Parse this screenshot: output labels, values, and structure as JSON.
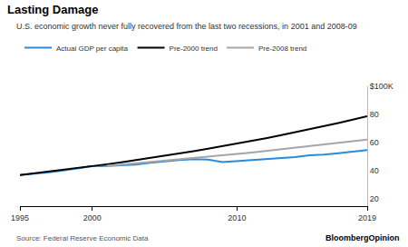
{
  "chart_data": {
    "type": "line",
    "title": "Lasting Damage",
    "subtitle": "U.S. economic growth never fully recovered from the last two recessions, in 2001 and 2008-09",
    "annotations": [
      "Source: Federal Reserve Economic Data",
      "BloombergOpinion"
    ],
    "x": [
      1995,
      1996,
      1997,
      1998,
      1999,
      2000,
      2001,
      2002,
      2003,
      2004,
      2005,
      2006,
      2007,
      2008,
      2009,
      2010,
      2011,
      2012,
      2013,
      2014,
      2015,
      2016,
      2017,
      2018,
      2019
    ],
    "series": [
      {
        "name": "Actual GDP per capita",
        "color": "#2a8ad8",
        "values": [
          37.0,
          37.8,
          39.0,
          40.3,
          41.9,
          43.3,
          43.5,
          43.8,
          44.5,
          45.8,
          46.8,
          47.7,
          48.3,
          48.0,
          46.3,
          47.0,
          47.5,
          48.3,
          48.9,
          49.8,
          51.0,
          51.5,
          52.5,
          53.8,
          54.8
        ]
      },
      {
        "name": "Pre-2000 trend",
        "color": "#000000",
        "values": [
          37.0,
          38.2,
          39.4,
          40.7,
          42.0,
          43.3,
          44.7,
          46.1,
          47.6,
          49.1,
          50.7,
          52.3,
          54.0,
          55.7,
          57.5,
          59.3,
          61.2,
          63.2,
          65.2,
          67.3,
          69.4,
          71.6,
          73.9,
          76.3,
          78.7
        ]
      },
      {
        "name": "Pre-2008 trend",
        "color": "#a6a6a6",
        "values": [
          null,
          null,
          null,
          null,
          null,
          null,
          43.5,
          44.4,
          45.3,
          46.2,
          47.1,
          48.0,
          49.0,
          50.0,
          51.0,
          52.0,
          53.0,
          54.1,
          55.2,
          56.3,
          57.4,
          58.6,
          59.8,
          61.0,
          62.2
        ]
      }
    ],
    "xlim": [
      1995,
      2019
    ],
    "xticks": [
      1995,
      2000,
      2010,
      2019
    ],
    "ylim": [
      15,
      100
    ],
    "yticks": [
      20,
      40,
      60,
      80,
      {
        "value": 100,
        "label": "$100K"
      }
    ],
    "grid": false,
    "legend": "top left"
  }
}
